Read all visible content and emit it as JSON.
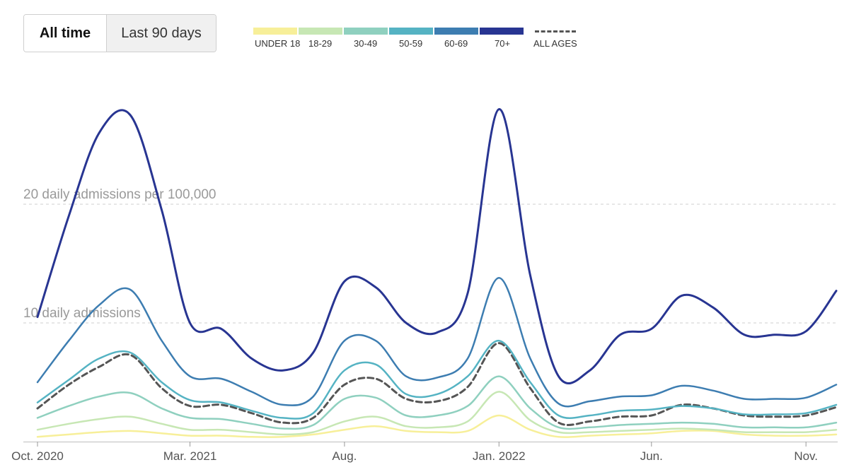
{
  "controls": {
    "all_time_label": "All time",
    "last_90_label": "Last 90 days"
  },
  "legend": {
    "items": [
      {
        "label": "UNDER 18",
        "color": "#f7ef99"
      },
      {
        "label": "18-29",
        "color": "#c7e7b4"
      },
      {
        "label": "30-49",
        "color": "#8fd0bf"
      },
      {
        "label": "50-59",
        "color": "#55b3c3"
      },
      {
        "label": "60-69",
        "color": "#3d7db1"
      },
      {
        "label": "70+",
        "color": "#283592"
      }
    ],
    "all_ages_label": "ALL AGES",
    "all_ages_color": "#555555"
  },
  "chart_data": {
    "type": "line",
    "ylim": [
      0,
      30
    ],
    "gridlines": [
      {
        "value": 10,
        "label": "10 daily admissions"
      },
      {
        "value": 20,
        "label": "20 daily admissions per 100,000"
      }
    ],
    "x_ticks": [
      "Oct. 2020",
      "Mar. 2021",
      "Aug.",
      "Jan. 2022",
      "Jun.",
      "Nov."
    ],
    "x": [
      "2020-10-01",
      "2020-11-01",
      "2020-12-01",
      "2021-01-01",
      "2021-02-01",
      "2021-03-01",
      "2021-04-01",
      "2021-05-01",
      "2021-06-01",
      "2021-07-01",
      "2021-08-01",
      "2021-09-01",
      "2021-10-01",
      "2021-11-01",
      "2021-12-01",
      "2022-01-01",
      "2022-02-01",
      "2022-03-01",
      "2022-04-01",
      "2022-05-01",
      "2022-06-01",
      "2022-07-01",
      "2022-08-01",
      "2022-09-01",
      "2022-10-01",
      "2022-11-01",
      "2022-12-01"
    ],
    "series": [
      {
        "name": "70+",
        "color": "#283592",
        "dashed": false,
        "width": 3,
        "values": [
          10.5,
          19,
          26,
          27.5,
          19.5,
          10,
          9.5,
          7,
          6,
          7.5,
          13.5,
          13,
          10,
          9.2,
          12.5,
          28,
          14,
          5.5,
          6,
          9,
          9.5,
          12.3,
          11.3,
          9,
          9,
          9.3,
          12.7
        ]
      },
      {
        "name": "60-69",
        "color": "#3d7db1",
        "dashed": false,
        "width": 2.5,
        "values": [
          5,
          8.5,
          11.5,
          12.8,
          8.5,
          5.5,
          5.3,
          4.2,
          3.1,
          3.8,
          8.5,
          8.5,
          5.5,
          5.4,
          7,
          13.8,
          7,
          3.2,
          3.4,
          3.8,
          3.9,
          4.7,
          4.3,
          3.6,
          3.6,
          3.7,
          4.8
        ]
      },
      {
        "name": "50-59",
        "color": "#55b3c3",
        "dashed": false,
        "width": 2.5,
        "values": [
          3.3,
          5.2,
          7,
          7.5,
          5,
          3.5,
          3.3,
          2.6,
          2.0,
          2.4,
          6,
          6.5,
          4,
          4,
          5.5,
          8.5,
          5,
          2.2,
          2.2,
          2.6,
          2.7,
          3.0,
          2.8,
          2.3,
          2.3,
          2.4,
          3.1
        ]
      },
      {
        "name": "30-49",
        "color": "#8fd0bf",
        "dashed": false,
        "width": 2.5,
        "values": [
          2.0,
          3.0,
          3.8,
          4.1,
          2.8,
          2.0,
          1.9,
          1.5,
          1.1,
          1.4,
          3.6,
          3.7,
          2.2,
          2.2,
          3.0,
          5.5,
          2.8,
          1.2,
          1.2,
          1.4,
          1.5,
          1.6,
          1.5,
          1.2,
          1.2,
          1.2,
          1.6
        ]
      },
      {
        "name": "18-29",
        "color": "#c7e7b4",
        "dashed": false,
        "width": 2.5,
        "values": [
          1.0,
          1.5,
          1.9,
          2.1,
          1.5,
          1.0,
          1.0,
          0.8,
          0.6,
          0.8,
          1.7,
          2.1,
          1.3,
          1.2,
          1.7,
          4.2,
          1.8,
          0.8,
          0.8,
          0.9,
          1.0,
          1.1,
          1.0,
          0.8,
          0.8,
          0.8,
          1.0
        ]
      },
      {
        "name": "UNDER 18",
        "color": "#f7ef99",
        "dashed": false,
        "width": 2.5,
        "values": [
          0.4,
          0.6,
          0.8,
          0.9,
          0.7,
          0.5,
          0.5,
          0.4,
          0.4,
          0.6,
          1.0,
          1.3,
          0.9,
          0.8,
          0.9,
          2.2,
          1.0,
          0.4,
          0.5,
          0.6,
          0.7,
          0.9,
          0.9,
          0.6,
          0.5,
          0.5,
          0.6
        ]
      },
      {
        "name": "ALL AGES",
        "color": "#555555",
        "dashed": true,
        "width": 3,
        "values": [
          2.8,
          4.8,
          6.3,
          7.3,
          4.5,
          3.0,
          3.1,
          2.4,
          1.6,
          2.0,
          4.8,
          5.3,
          3.6,
          3.4,
          4.6,
          8.3,
          4.5,
          1.6,
          1.7,
          2.1,
          2.2,
          3.1,
          2.8,
          2.2,
          2.1,
          2.2,
          2.9
        ]
      }
    ]
  }
}
